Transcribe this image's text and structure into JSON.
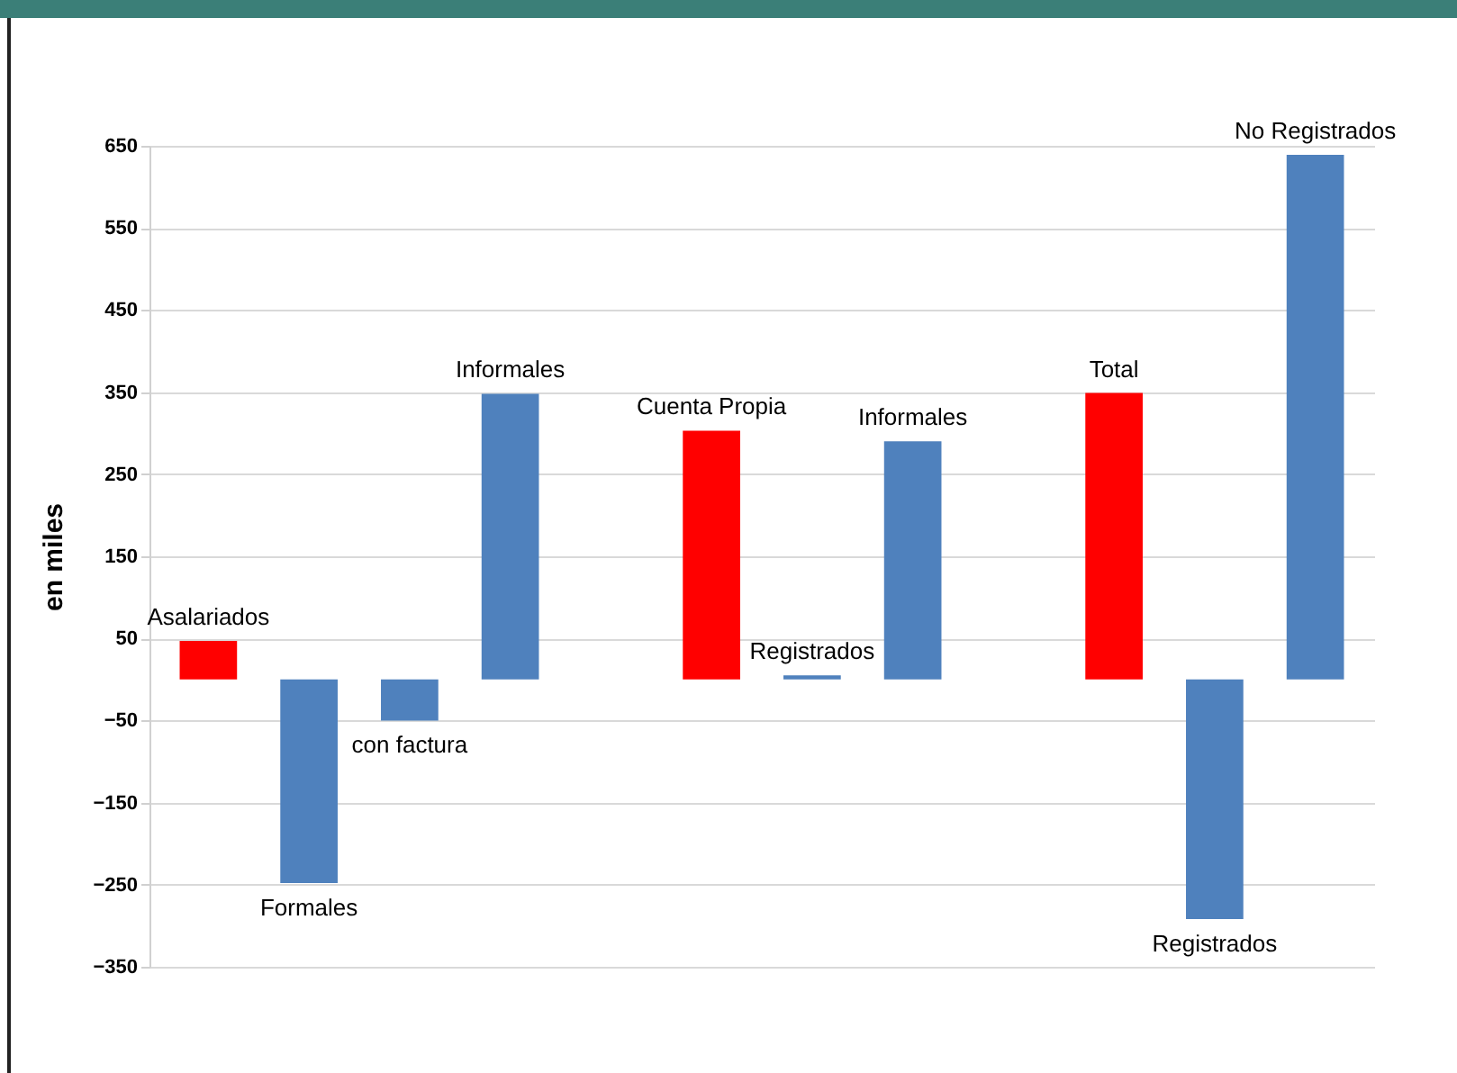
{
  "chart_data": {
    "type": "bar",
    "ylabel": "en miles",
    "categories": [
      "Asalariados",
      "Formales",
      "con factura",
      "Informales",
      null,
      "Cuenta Propia",
      "Registrados",
      "Informales",
      null,
      "Total",
      "Registrados",
      "No Registrados"
    ],
    "values": [
      47,
      -248,
      -50,
      348,
      null,
      303,
      5,
      290,
      null,
      349,
      -292,
      639
    ],
    "colors": [
      "#ff0000",
      "#4f81bd",
      "#4f81bd",
      "#4f81bd",
      null,
      "#ff0000",
      "#4f81bd",
      "#4f81bd",
      null,
      "#ff0000",
      "#4f81bd",
      "#4f81bd"
    ],
    "ylim": [
      -350,
      650
    ],
    "yticks": [
      -350,
      -250,
      -150,
      -50,
      50,
      150,
      250,
      350,
      450,
      550,
      650
    ],
    "grid": "y",
    "tick_labels": "y"
  }
}
